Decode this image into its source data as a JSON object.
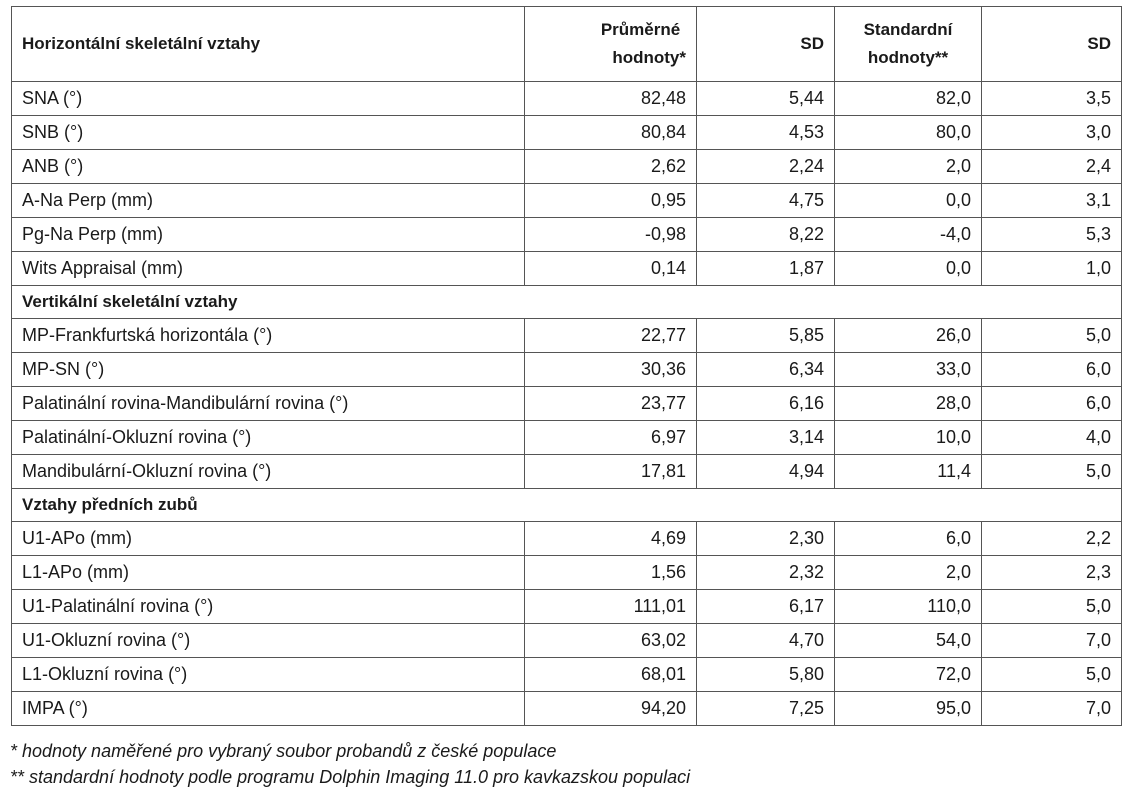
{
  "table": {
    "headers": {
      "label": "Horizontální skeletální vztahy",
      "mean_line1": "Průměrné",
      "mean_line2": "hodnoty*",
      "sd1": "SD",
      "std_line1": "Standardní",
      "std_line2": "hodnoty**",
      "sd2": "SD"
    },
    "rows": [
      {
        "type": "data",
        "cells": [
          "SNA (°)",
          "82,48",
          "5,44",
          "82,0",
          "3,5"
        ]
      },
      {
        "type": "data",
        "cells": [
          "SNB (°)",
          "80,84",
          "4,53",
          "80,0",
          "3,0"
        ]
      },
      {
        "type": "data",
        "cells": [
          "ANB (°)",
          "2,62",
          "2,24",
          "2,0",
          "2,4"
        ]
      },
      {
        "type": "data",
        "cells": [
          "A-Na Perp (mm)",
          "0,95",
          "4,75",
          "0,0",
          "3,1"
        ]
      },
      {
        "type": "data",
        "cells": [
          "Pg-Na Perp (mm)",
          "-0,98",
          "8,22",
          "-4,0",
          "5,3"
        ]
      },
      {
        "type": "data",
        "cells": [
          "Wits Appraisal (mm)",
          "0,14",
          "1,87",
          "0,0",
          "1,0"
        ]
      },
      {
        "type": "section",
        "title": "Vertikální skeletální vztahy"
      },
      {
        "type": "data",
        "cells": [
          "MP-Frankfurtská horizontála (°)",
          "22,77",
          "5,85",
          "26,0",
          "5,0"
        ]
      },
      {
        "type": "data",
        "cells": [
          "MP-SN (°)",
          "30,36",
          "6,34",
          "33,0",
          "6,0"
        ]
      },
      {
        "type": "data",
        "cells": [
          "Palatinální rovina-Mandibulární rovina (°)",
          "23,77",
          "6,16",
          "28,0",
          "6,0"
        ]
      },
      {
        "type": "data",
        "cells": [
          "Palatinální-Okluzní rovina (°)",
          "6,97",
          "3,14",
          "10,0",
          "4,0"
        ]
      },
      {
        "type": "data",
        "cells": [
          "Mandibulární-Okluzní rovina (°)",
          "17,81",
          "4,94",
          "11,4",
          "5,0"
        ]
      },
      {
        "type": "section",
        "title": "Vztahy předních zubů"
      },
      {
        "type": "data",
        "cells": [
          "U1-APo (mm)",
          "4,69",
          "2,30",
          "6,0",
          "2,2"
        ]
      },
      {
        "type": "data",
        "cells": [
          "L1-APo (mm)",
          "1,56",
          "2,32",
          "2,0",
          "2,3"
        ]
      },
      {
        "type": "data",
        "cells": [
          "U1-Palatinální rovina (°)",
          "111,01",
          "6,17",
          "110,0",
          "5,0"
        ]
      },
      {
        "type": "data",
        "cells": [
          "U1-Okluzní rovina (°)",
          "63,02",
          "4,70",
          "54,0",
          "7,0"
        ]
      },
      {
        "type": "data",
        "cells": [
          "L1-Okluzní rovina (°)",
          "68,01",
          "5,80",
          "72,0",
          "5,0"
        ]
      },
      {
        "type": "data",
        "cells": [
          "IMPA (°)",
          "94,20",
          "7,25",
          "95,0",
          "7,0"
        ]
      }
    ]
  },
  "footnotes": {
    "note1": "* hodnoty naměřené pro vybraný soubor probandů z české populace",
    "note2": "** standardní hodnoty podle programu Dolphin Imaging 11.0 pro kavkazskou populaci"
  }
}
